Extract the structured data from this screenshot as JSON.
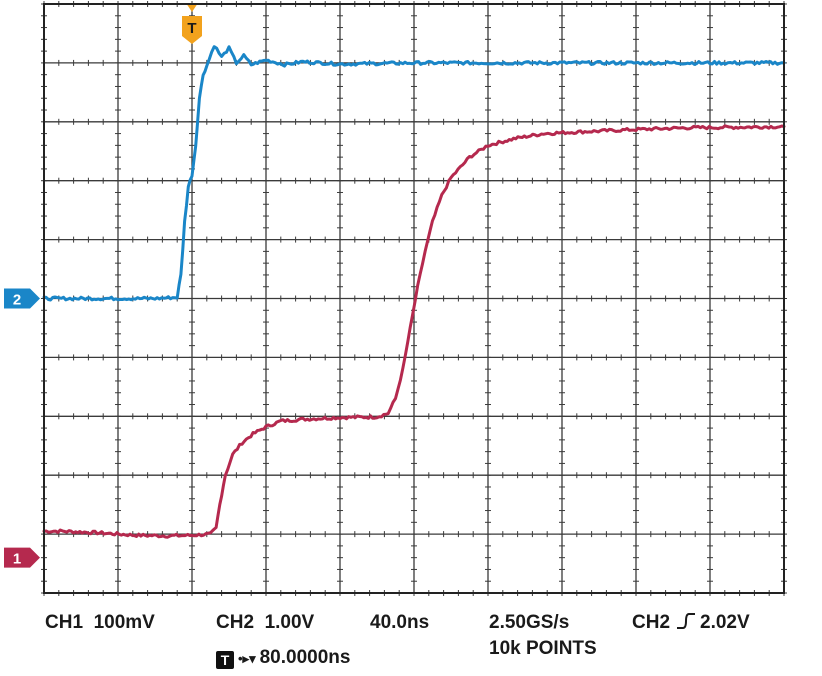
{
  "chart_data": {
    "type": "line",
    "grid": true,
    "x_divisions": 10,
    "y_divisions": 10,
    "xlim": [
      -80,
      320
    ],
    "x_unit": "ns",
    "series": [
      {
        "channel": "1",
        "color": "#b5294e",
        "points": [
          [
            -80,
            1.05
          ],
          [
            -70,
            1.05
          ],
          [
            -50,
            1.02
          ],
          [
            -30,
            0.98
          ],
          [
            -12,
            0.97
          ],
          [
            0,
            0.98
          ],
          [
            10,
            1.0
          ],
          [
            13,
            1.1
          ],
          [
            15,
            1.5
          ],
          [
            18,
            2.0
          ],
          [
            22,
            2.35
          ],
          [
            27,
            2.55
          ],
          [
            33,
            2.7
          ],
          [
            40,
            2.82
          ],
          [
            48,
            2.92
          ],
          [
            60,
            2.95
          ],
          [
            80,
            2.98
          ],
          [
            100,
            2.99
          ],
          [
            106,
            3.05
          ],
          [
            110,
            3.3
          ],
          [
            114,
            3.8
          ],
          [
            118,
            4.5
          ],
          [
            122,
            5.2
          ],
          [
            126,
            5.8
          ],
          [
            130,
            6.3
          ],
          [
            135,
            6.75
          ],
          [
            140,
            7.05
          ],
          [
            150,
            7.4
          ],
          [
            160,
            7.6
          ],
          [
            175,
            7.72
          ],
          [
            190,
            7.8
          ],
          [
            210,
            7.83
          ],
          [
            240,
            7.87
          ],
          [
            270,
            7.9
          ],
          [
            300,
            7.91
          ],
          [
            320,
            7.92
          ]
        ]
      },
      {
        "channel": "2",
        "color": "#1a86c8",
        "points": [
          [
            -80,
            5.0
          ],
          [
            -60,
            5.0
          ],
          [
            -40,
            5.0
          ],
          [
            -20,
            5.0
          ],
          [
            -8,
            5.02
          ],
          [
            -6,
            5.4
          ],
          [
            -4,
            6.3
          ],
          [
            -2,
            6.9
          ],
          [
            0,
            7.1
          ],
          [
            2,
            7.6
          ],
          [
            4,
            8.4
          ],
          [
            6,
            8.8
          ],
          [
            8,
            8.95
          ],
          [
            12,
            9.3
          ],
          [
            16,
            9.1
          ],
          [
            20,
            9.25
          ],
          [
            24,
            9.0
          ],
          [
            28,
            9.12
          ],
          [
            32,
            8.97
          ],
          [
            40,
            9.05
          ],
          [
            50,
            8.97
          ],
          [
            60,
            9.02
          ],
          [
            80,
            8.98
          ],
          [
            120,
            9.0
          ],
          [
            160,
            9.0
          ],
          [
            200,
            9.0
          ],
          [
            240,
            9.0
          ],
          [
            280,
            9.0
          ],
          [
            320,
            9.0
          ]
        ]
      }
    ],
    "markers": {
      "trigger_label": "T",
      "trigger_x": 0,
      "ch2_label": "2",
      "ch2_ground_div": 5.0,
      "ch1_label": "1",
      "ch1_ground_div": 0.6
    }
  },
  "readout": {
    "ch1_label": "CH1",
    "ch1_scale": "100mV",
    "ch2_label": "CH2",
    "ch2_scale": "1.00V",
    "timebase": "40.0ns",
    "sample_rate": "2.50GS/s",
    "record_length": "10k POINTS",
    "trigger_source": "CH2",
    "trigger_level": "2.02V",
    "delay_badge": "T",
    "delay_value": "80.0000ns"
  }
}
